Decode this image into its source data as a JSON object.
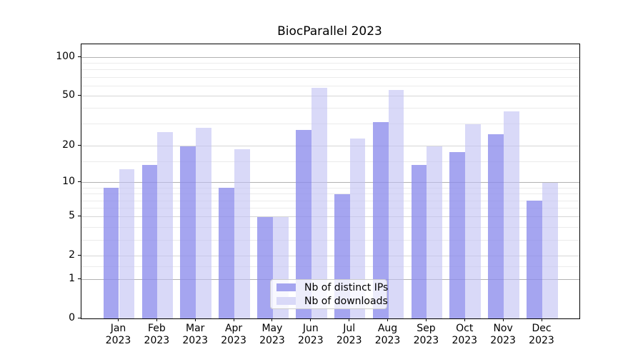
{
  "chart_data": {
    "type": "bar",
    "title": "BiocParallel 2023",
    "categories": [
      "Jan",
      "Feb",
      "Mar",
      "Apr",
      "May",
      "Jun",
      "Jul",
      "Aug",
      "Sep",
      "Oct",
      "Nov",
      "Dec"
    ],
    "category_year": "2023",
    "series": [
      {
        "name": "Nb of distinct IPs",
        "values": [
          9,
          14,
          20,
          9,
          5,
          27,
          8,
          31,
          14,
          18,
          25,
          7
        ],
        "color": "#a4a4ef",
        "fill": "rgba(140,140,236,0.78)"
      },
      {
        "name": "Nb of downloads",
        "values": [
          13,
          26,
          28,
          19,
          5,
          58,
          23,
          56,
          20,
          30,
          38,
          10
        ],
        "color": "#d9d9f8",
        "fill": "rgba(192,192,243,0.6)"
      }
    ],
    "y_scale": "log1p",
    "y_ticks": [
      0,
      1,
      2,
      5,
      10,
      20,
      50,
      100
    ],
    "y_minor_ticks": [
      1.5,
      3,
      4,
      6,
      7,
      8,
      9,
      15,
      30,
      40,
      60,
      70,
      80,
      90
    ],
    "ylim": [
      0,
      126
    ],
    "xlabel": "",
    "ylabel": "",
    "grid": true,
    "legend_position": "lower center"
  },
  "colors": {
    "grid_major_decade": "#b2b2b2",
    "grid_major": "#d6d6d6",
    "grid_minor": "#ebebeb",
    "spine": "#000000",
    "background": "#ffffff"
  }
}
